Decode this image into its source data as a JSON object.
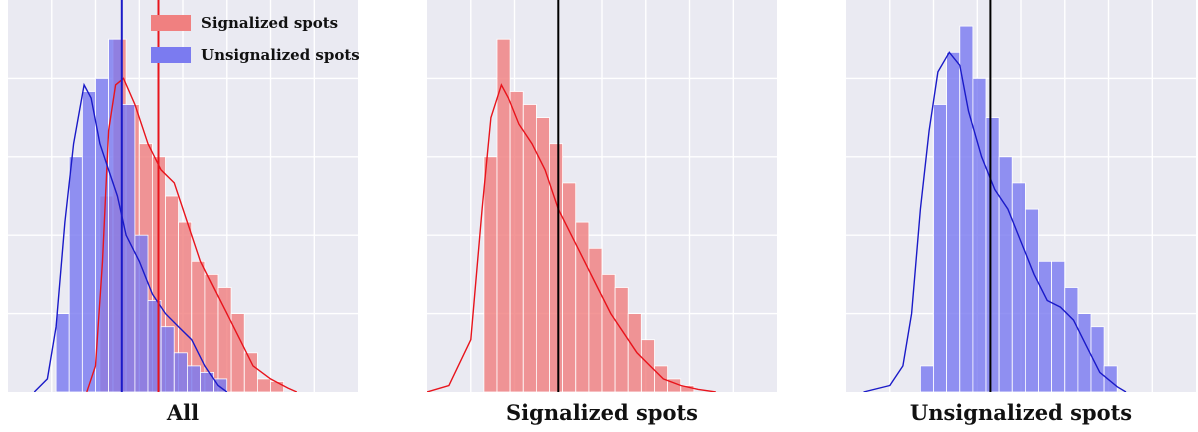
{
  "colors": {
    "signalized_fill": "#f08080",
    "signalized_line": "#e8141c",
    "unsignalized_fill": "#7b7bf0",
    "unsignalized_line": "#1a1ac8",
    "plot_background": "#eaeaf2",
    "mean_line_single": "#000000"
  },
  "legend": {
    "signalized": "Signalized spots",
    "unsignalized": "Unsignalized spots"
  },
  "captions": {
    "all": "All",
    "signalized": "Signalized spots",
    "unsignalized": "Unsignalized spots"
  },
  "chart_data": [
    {
      "type": "histogram",
      "panel": "All",
      "grid": true,
      "legend_position": "top-right",
      "xlim": [
        0,
        40
      ],
      "ylim": [
        0,
        0.3
      ],
      "series": [
        {
          "name": "Signalized spots",
          "bin_start": 10.5,
          "bin_width": 1.5,
          "values": [
            0.15,
            0.27,
            0.22,
            0.19,
            0.18,
            0.15,
            0.13,
            0.1,
            0.09,
            0.08,
            0.06,
            0.03,
            0.01,
            0.008
          ],
          "kde_x": [
            9.0,
            10.0,
            10.8,
            11.5,
            12.3,
            13.2,
            14.5,
            16.0,
            17.5,
            19.0,
            20.5,
            22.0,
            23.5,
            25.0,
            26.5,
            28.0,
            30.0,
            32.0,
            33.0
          ],
          "kde_y": [
            0.0,
            0.02,
            0.1,
            0.2,
            0.235,
            0.24,
            0.22,
            0.19,
            0.17,
            0.16,
            0.13,
            0.1,
            0.08,
            0.06,
            0.04,
            0.02,
            0.01,
            0.003,
            0.0
          ],
          "mean": 17.2
        },
        {
          "name": "Unsignalized spots",
          "bin_start": 5.5,
          "bin_width": 1.5,
          "values": [
            0.06,
            0.18,
            0.23,
            0.24,
            0.27,
            0.22,
            0.12,
            0.07,
            0.05,
            0.03,
            0.02,
            0.015,
            0.01
          ],
          "kde_x": [
            3.0,
            4.5,
            5.5,
            6.5,
            7.5,
            8.7,
            9.5,
            10.5,
            11.5,
            12.5,
            13.5,
            15.0,
            16.5,
            18.0,
            19.5,
            21.0,
            22.5,
            24.0,
            25.0
          ],
          "kde_y": [
            0.0,
            0.01,
            0.05,
            0.13,
            0.19,
            0.235,
            0.225,
            0.19,
            0.17,
            0.15,
            0.12,
            0.1,
            0.075,
            0.06,
            0.05,
            0.04,
            0.02,
            0.005,
            0.0
          ],
          "mean": 13.0
        }
      ]
    },
    {
      "type": "histogram",
      "panel": "Signalized spots",
      "grid": true,
      "xlim": [
        0,
        40
      ],
      "ylim": [
        0,
        0.3
      ],
      "series": [
        {
          "name": "Signalized spots",
          "bin_start": 6.5,
          "bin_width": 1.5,
          "values": [
            0.18,
            0.27,
            0.23,
            0.22,
            0.21,
            0.19,
            0.16,
            0.13,
            0.11,
            0.09,
            0.08,
            0.06,
            0.04,
            0.02,
            0.01,
            0.005
          ],
          "kde_x": [
            0.0,
            2.5,
            5.0,
            6.3,
            7.3,
            8.5,
            9.3,
            10.5,
            12.0,
            13.5,
            15.0,
            16.5,
            18.0,
            19.5,
            21.0,
            22.5,
            24.0,
            25.5,
            27.0,
            29.0,
            31.0,
            33.0
          ],
          "kde_y": [
            0.0,
            0.005,
            0.04,
            0.14,
            0.21,
            0.235,
            0.225,
            0.205,
            0.19,
            0.17,
            0.14,
            0.12,
            0.1,
            0.08,
            0.06,
            0.045,
            0.03,
            0.02,
            0.01,
            0.005,
            0.002,
            0.0
          ],
          "mean": 15.0
        }
      ]
    },
    {
      "type": "histogram",
      "panel": "Unsignalized spots",
      "grid": true,
      "xlim": [
        0,
        40
      ],
      "ylim": [
        0,
        0.3
      ],
      "series": [
        {
          "name": "Unsignalized spots",
          "bin_start": 8.5,
          "bin_width": 1.5,
          "values": [
            0.02,
            0.22,
            0.26,
            0.28,
            0.24,
            0.21,
            0.18,
            0.16,
            0.14,
            0.1,
            0.1,
            0.08,
            0.06,
            0.05,
            0.02
          ],
          "kde_x": [
            2.0,
            5.0,
            6.5,
            7.5,
            8.5,
            9.5,
            10.5,
            11.8,
            13.0,
            14.0,
            15.5,
            17.0,
            18.5,
            20.0,
            21.5,
            23.0,
            24.5,
            26.0,
            27.5,
            29.0,
            31.0,
            32.0
          ],
          "kde_y": [
            0.0,
            0.005,
            0.02,
            0.06,
            0.14,
            0.2,
            0.245,
            0.26,
            0.25,
            0.215,
            0.18,
            0.155,
            0.14,
            0.115,
            0.09,
            0.07,
            0.065,
            0.055,
            0.035,
            0.015,
            0.004,
            0.0
          ],
          "mean": 16.5
        }
      ]
    }
  ]
}
